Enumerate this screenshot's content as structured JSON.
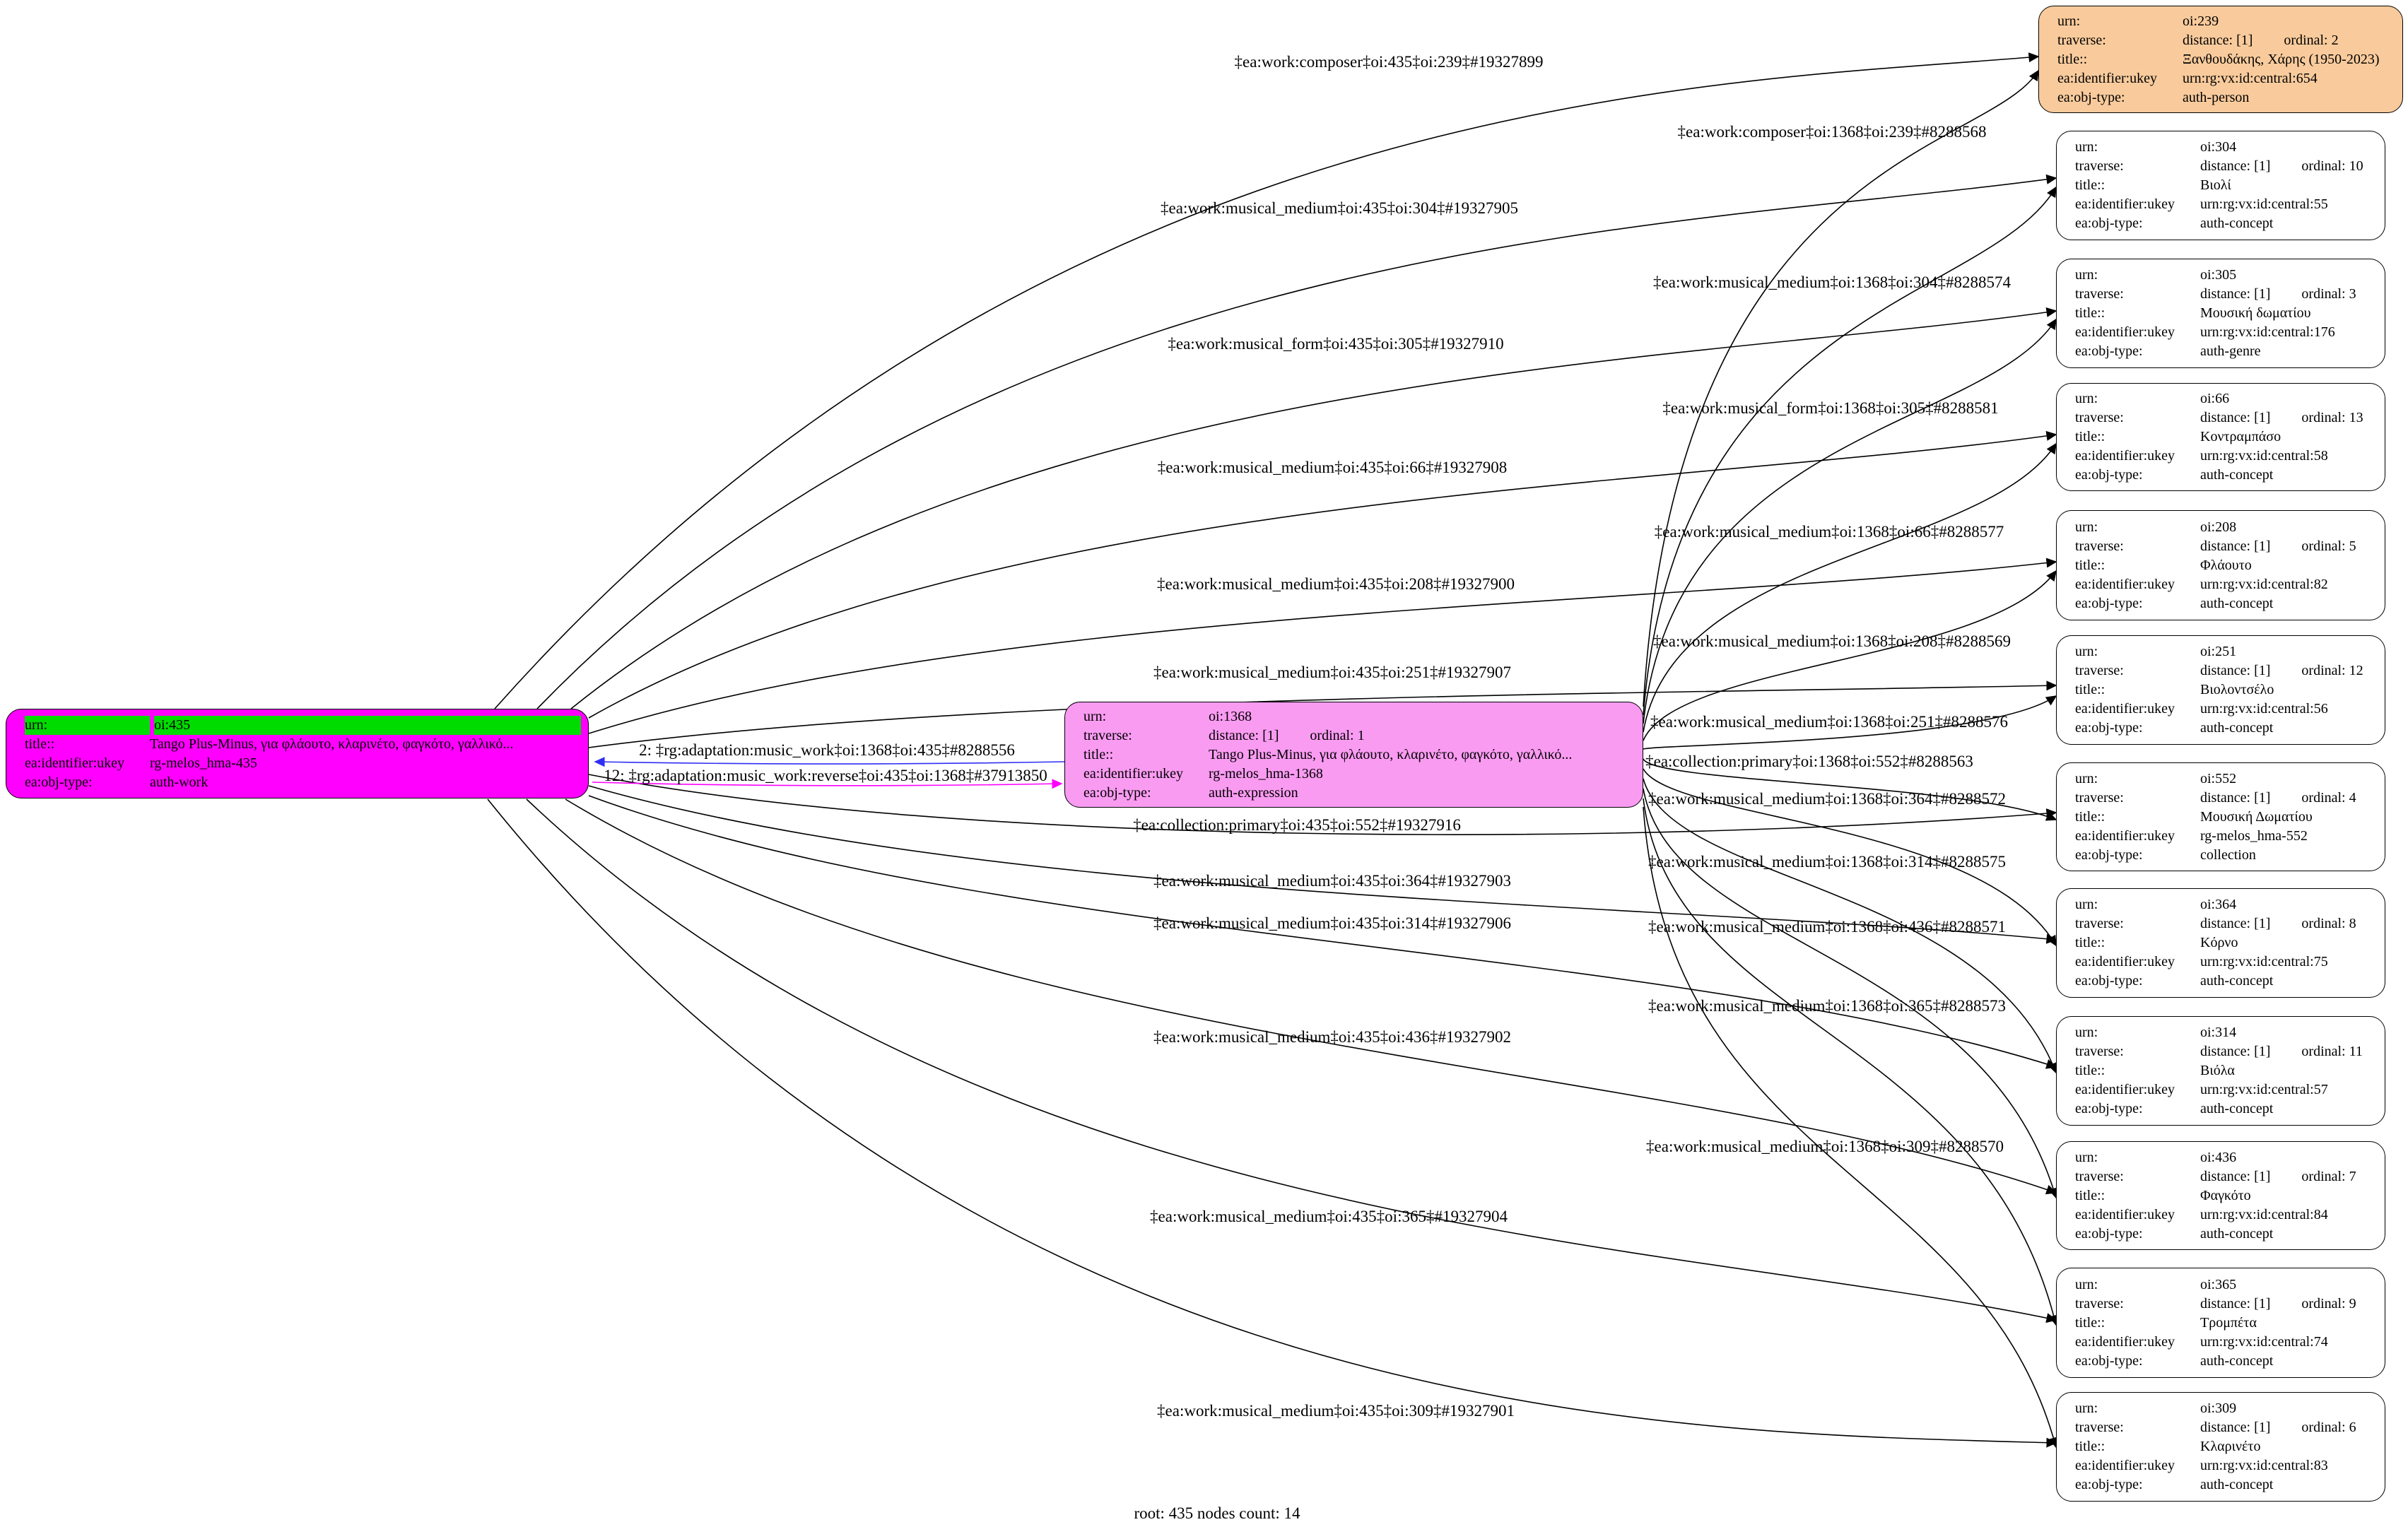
{
  "diagram": {
    "root_label": "root: 435 nodes count: 14",
    "row_keys": {
      "urn": "urn:",
      "traverse": "traverse:",
      "title": "title::",
      "ukey": "ea:identifier:ukey",
      "objtype": "ea:obj-type:"
    },
    "colors": {
      "root_fill": "#FF00FF",
      "root_urn_highlight": "#00DB00",
      "expression_fill": "#FA9BF2",
      "person_fill": "#F9CB9C",
      "concept_fill": "#FFFFFF",
      "edge": "#000000",
      "adaptation_to_root": "#2E2EF5",
      "adaptation_to_expression": "#FF00FF"
    },
    "nodes": [
      {
        "id": "oi:435",
        "fill": "#FF00FF",
        "urn_highlight": "#00DB00",
        "urn": "oi:435",
        "title": "Tango Plus-Minus, για φλάουτο, κλαρινέτο, φαγκότο, γαλλικό...",
        "ukey": "rg-melos_hma-435",
        "objtype": "auth-work"
      },
      {
        "id": "oi:1368",
        "fill": "#FA9BF2",
        "urn": "oi:1368",
        "distance": "distance: [1]",
        "ordinal": "ordinal: 1",
        "title": "Tango Plus-Minus, για φλάουτο, κλαρινέτο, φαγκότο, γαλλικό...",
        "ukey": "rg-melos_hma-1368",
        "objtype": "auth-expression"
      },
      {
        "id": "oi:239",
        "fill": "#F9CB9C",
        "urn": "oi:239",
        "distance": "distance: [1]",
        "ordinal": "ordinal: 2",
        "title": "Ξανθουδάκης, Χάρης (1950-2023)",
        "ukey": "urn:rg:vx:id:central:654",
        "objtype": "auth-person"
      },
      {
        "id": "oi:304",
        "fill": "#FFFFFF",
        "urn": "oi:304",
        "distance": "distance: [1]",
        "ordinal": "ordinal: 10",
        "title": "Βιολί",
        "ukey": "urn:rg:vx:id:central:55",
        "objtype": "auth-concept"
      },
      {
        "id": "oi:305",
        "fill": "#FFFFFF",
        "urn": "oi:305",
        "distance": "distance: [1]",
        "ordinal": "ordinal: 3",
        "title": "Μουσική δωματίου",
        "ukey": "urn:rg:vx:id:central:176",
        "objtype": "auth-genre"
      },
      {
        "id": "oi:66",
        "fill": "#FFFFFF",
        "urn": "oi:66",
        "distance": "distance: [1]",
        "ordinal": "ordinal: 13",
        "title": "Κοντραμπάσο",
        "ukey": "urn:rg:vx:id:central:58",
        "objtype": "auth-concept"
      },
      {
        "id": "oi:208",
        "fill": "#FFFFFF",
        "urn": "oi:208",
        "distance": "distance: [1]",
        "ordinal": "ordinal: 5",
        "title": "Φλάουτο",
        "ukey": "urn:rg:vx:id:central:82",
        "objtype": "auth-concept"
      },
      {
        "id": "oi:251",
        "fill": "#FFFFFF",
        "urn": "oi:251",
        "distance": "distance: [1]",
        "ordinal": "ordinal: 12",
        "title": "Βιολοντσέλο",
        "ukey": "urn:rg:vx:id:central:56",
        "objtype": "auth-concept"
      },
      {
        "id": "oi:552",
        "fill": "#FFFFFF",
        "urn": "oi:552",
        "distance": "distance: [1]",
        "ordinal": "ordinal: 4",
        "title": "Μουσική Δωματίου",
        "ukey": "rg-melos_hma-552",
        "objtype": "collection"
      },
      {
        "id": "oi:364",
        "fill": "#FFFFFF",
        "urn": "oi:364",
        "distance": "distance: [1]",
        "ordinal": "ordinal: 8",
        "title": "Κόρνο",
        "ukey": "urn:rg:vx:id:central:75",
        "objtype": "auth-concept"
      },
      {
        "id": "oi:314",
        "fill": "#FFFFFF",
        "urn": "oi:314",
        "distance": "distance: [1]",
        "ordinal": "ordinal: 11",
        "title": "Βιόλα",
        "ukey": "urn:rg:vx:id:central:57",
        "objtype": "auth-concept"
      },
      {
        "id": "oi:436",
        "fill": "#FFFFFF",
        "urn": "oi:436",
        "distance": "distance: [1]",
        "ordinal": "ordinal: 7",
        "title": "Φαγκότο",
        "ukey": "urn:rg:vx:id:central:84",
        "objtype": "auth-concept"
      },
      {
        "id": "oi:365",
        "fill": "#FFFFFF",
        "urn": "oi:365",
        "distance": "distance: [1]",
        "ordinal": "ordinal: 9",
        "title": "Τρομπέτα",
        "ukey": "urn:rg:vx:id:central:74",
        "objtype": "auth-concept"
      },
      {
        "id": "oi:309",
        "fill": "#FFFFFF",
        "urn": "oi:309",
        "distance": "distance: [1]",
        "ordinal": "ordinal: 6",
        "title": "Κλαρινέτο",
        "ukey": "urn:rg:vx:id:central:83",
        "objtype": "auth-concept"
      }
    ],
    "root_edges": [
      {
        "label": "‡ea:work:composer‡oi:435‡oi:239‡#19327899",
        "target": "oi:239"
      },
      {
        "label": "‡ea:work:musical_medium‡oi:435‡oi:304‡#19327905",
        "target": "oi:304"
      },
      {
        "label": "‡ea:work:musical_form‡oi:435‡oi:305‡#19327910",
        "target": "oi:305"
      },
      {
        "label": "‡ea:work:musical_medium‡oi:435‡oi:66‡#19327908",
        "target": "oi:66"
      },
      {
        "label": "‡ea:work:musical_medium‡oi:435‡oi:208‡#19327900",
        "target": "oi:208"
      },
      {
        "label": "‡ea:work:musical_medium‡oi:435‡oi:251‡#19327907",
        "target": "oi:251"
      },
      {
        "label": "‡ea:collection:primary‡oi:435‡oi:552‡#19327916",
        "target": "oi:552"
      },
      {
        "label": "‡ea:work:musical_medium‡oi:435‡oi:364‡#19327903",
        "target": "oi:364"
      },
      {
        "label": "‡ea:work:musical_medium‡oi:435‡oi:314‡#19327906",
        "target": "oi:314"
      },
      {
        "label": "‡ea:work:musical_medium‡oi:435‡oi:436‡#19327902",
        "target": "oi:436"
      },
      {
        "label": "‡ea:work:musical_medium‡oi:435‡oi:365‡#19327904",
        "target": "oi:365"
      },
      {
        "label": "‡ea:work:musical_medium‡oi:435‡oi:309‡#19327901",
        "target": "oi:309"
      }
    ],
    "expression_edges": [
      {
        "label": "‡ea:work:composer‡oi:1368‡oi:239‡#8288568",
        "target": "oi:239"
      },
      {
        "label": "‡ea:work:musical_medium‡oi:1368‡oi:304‡#8288574",
        "target": "oi:304"
      },
      {
        "label": "‡ea:work:musical_form‡oi:1368‡oi:305‡#8288581",
        "target": "oi:305"
      },
      {
        "label": "‡ea:work:musical_medium‡oi:1368‡oi:66‡#8288577",
        "target": "oi:66"
      },
      {
        "label": "‡ea:work:musical_medium‡oi:1368‡oi:208‡#8288569",
        "target": "oi:208"
      },
      {
        "label": "‡ea:work:musical_medium‡oi:1368‡oi:251‡#8288576",
        "target": "oi:251"
      },
      {
        "label": "‡ea:collection:primary‡oi:1368‡oi:552‡#8288563",
        "target": "oi:552"
      },
      {
        "label": "‡ea:work:musical_medium‡oi:1368‡oi:364‡#8288572",
        "target": "oi:364"
      },
      {
        "label": "‡ea:work:musical_medium‡oi:1368‡oi:314‡#8288575",
        "target": "oi:314"
      },
      {
        "label": "‡ea:work:musical_medium‡oi:1368‡oi:436‡#8288571",
        "target": "oi:436"
      },
      {
        "label": "‡ea:work:musical_medium‡oi:1368‡oi:365‡#8288573",
        "target": "oi:365"
      },
      {
        "label": "‡ea:work:musical_medium‡oi:1368‡oi:309‡#8288570",
        "target": "oi:309"
      }
    ],
    "adaptation_edges": [
      {
        "label": "2: ‡rg:adaptation:music_work‡oi:1368‡oi:435‡#8288556",
        "color": "#2E2EF5",
        "direction": "to-root"
      },
      {
        "label": "12: ‡rg:adaptation:music_work:reverse‡oi:435‡oi:1368‡#37913850",
        "color": "#FF00FF",
        "direction": "to-expression"
      }
    ]
  }
}
